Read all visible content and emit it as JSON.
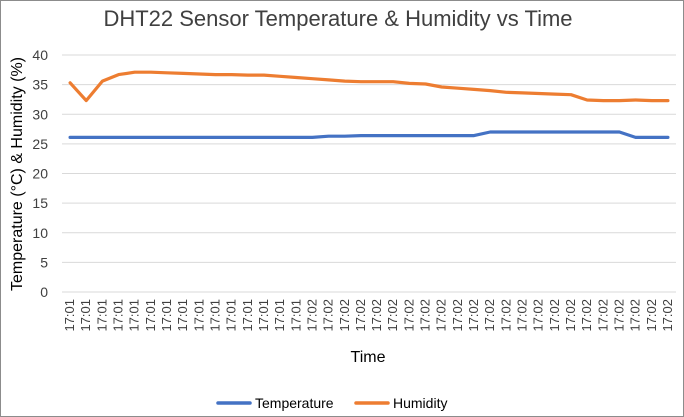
{
  "chart_data": {
    "type": "line",
    "title": "DHT22 Sensor Temperature & Humidity vs Time",
    "xlabel": "Time",
    "ylabel": "Temperature (°C) & Humidity (%)",
    "ylim": [
      0,
      40
    ],
    "yticks": [
      0,
      5,
      10,
      15,
      20,
      25,
      30,
      35,
      40
    ],
    "grid": true,
    "legend_position": "bottom",
    "categories": [
      "17:01",
      "17:01",
      "17:01",
      "17:01",
      "17:01",
      "17:01",
      "17:01",
      "17:01",
      "17:01",
      "17:01",
      "17:01",
      "17:01",
      "17:01",
      "17:01",
      "17:01",
      "17:02",
      "17:02",
      "17:02",
      "17:02",
      "17:02",
      "17:02",
      "17:02",
      "17:02",
      "17:02",
      "17:02",
      "17:02",
      "17:02",
      "17:02",
      "17:02",
      "17:02",
      "17:02",
      "17:02",
      "17:02",
      "17:02",
      "17:02",
      "17:02",
      "17:02",
      "17:02"
    ],
    "series": [
      {
        "name": "Temperature",
        "color": "#4472c4",
        "values": [
          26.1,
          26.1,
          26.1,
          26.1,
          26.1,
          26.1,
          26.1,
          26.1,
          26.1,
          26.1,
          26.1,
          26.1,
          26.1,
          26.1,
          26.1,
          26.1,
          26.3,
          26.3,
          26.4,
          26.4,
          26.4,
          26.4,
          26.4,
          26.4,
          26.4,
          26.4,
          27.0,
          27.0,
          27.0,
          27.0,
          27.0,
          27.0,
          27.0,
          27.0,
          27.0,
          26.1,
          26.1,
          26.1
        ]
      },
      {
        "name": "Humidity",
        "color": "#ed7d31",
        "values": [
          35.3,
          32.3,
          35.6,
          36.7,
          37.1,
          37.1,
          37.0,
          36.9,
          36.8,
          36.7,
          36.7,
          36.6,
          36.6,
          36.4,
          36.2,
          36.0,
          35.8,
          35.6,
          35.5,
          35.5,
          35.5,
          35.2,
          35.1,
          34.6,
          34.4,
          34.2,
          34.0,
          33.7,
          33.6,
          33.5,
          33.4,
          33.3,
          32.4,
          32.3,
          32.3,
          32.4,
          32.3,
          32.3
        ]
      }
    ]
  }
}
